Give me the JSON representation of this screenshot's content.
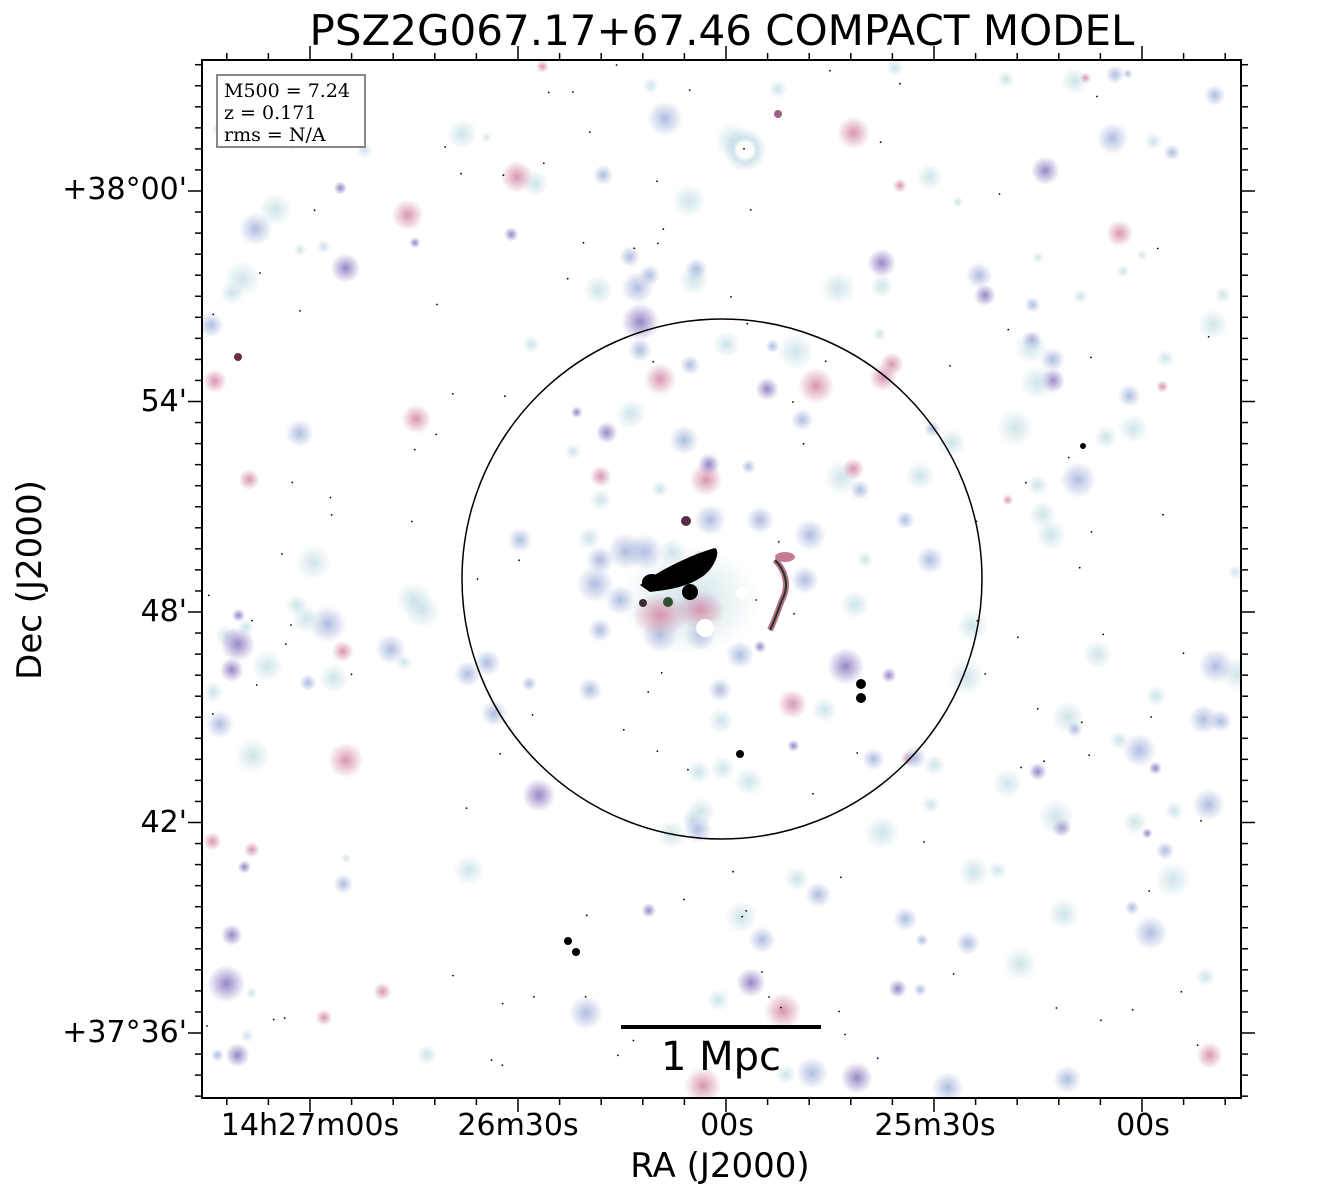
{
  "title": "PSZ2G067.17+67.46 COMPACT MODEL",
  "axes": {
    "xlabel": "RA (J2000)",
    "ylabel": "Dec (J2000)",
    "xticks": [
      "14h27m00s",
      "26m30s",
      "00s",
      "25m30s",
      "00s"
    ],
    "yticks": [
      "+38°00'",
      "54'",
      "48'",
      "42'",
      "+37°36'"
    ]
  },
  "info": {
    "m500": "M500 = 7.24",
    "z": "z = 0.171",
    "rms": "rms = N/A"
  },
  "scalebar": {
    "label": "1 Mpc"
  },
  "colors": {
    "halo": "#cfe3ea",
    "blob_purple": "#b7a2cf",
    "blob_pink": "#d9a1b8",
    "blob_blue": "#a9b8dc",
    "core": "#000000"
  }
}
